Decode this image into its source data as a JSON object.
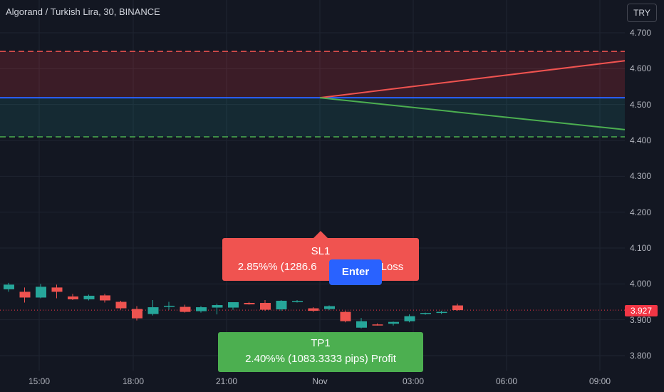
{
  "header": {
    "title": "Algorand / Turkish Lira, 30, BINANCE",
    "currency": "TRY"
  },
  "colors": {
    "background": "#131722",
    "up": "#26a69a",
    "down": "#ef5350",
    "sl": "#f05350",
    "tp": "#4caf50",
    "entry": "#2962ff"
  },
  "chart_data": {
    "type": "candlestick",
    "y_ticks": [
      "4.700",
      "4.600",
      "4.500",
      "4.400",
      "4.300",
      "4.200",
      "4.100",
      "4.000",
      "3.900",
      "3.800"
    ],
    "x_ticks": [
      "15:00",
      "18:00",
      "21:00",
      "Nov",
      "03:00",
      "06:00",
      "09:00"
    ],
    "last_price": "3.927",
    "ylim": [
      3.76,
      4.72
    ],
    "position": {
      "entry": 4.519,
      "stop": 4.648,
      "target": 4.41,
      "stop_projection": 4.622,
      "target_projection": 4.43
    },
    "candles": [
      {
        "t": 1,
        "o": 3.985,
        "h": 4.003,
        "l": 3.978,
        "c": 3.998
      },
      {
        "t": 2,
        "o": 3.978,
        "h": 3.99,
        "l": 3.948,
        "c": 3.962
      },
      {
        "t": 3,
        "o": 3.962,
        "h": 4.0,
        "l": 3.96,
        "c": 3.992
      },
      {
        "t": 4,
        "o": 3.99,
        "h": 3.998,
        "l": 3.96,
        "c": 3.978
      },
      {
        "t": 5,
        "o": 3.965,
        "h": 3.972,
        "l": 3.955,
        "c": 3.957
      },
      {
        "t": 6,
        "o": 3.957,
        "h": 3.97,
        "l": 3.954,
        "c": 3.967
      },
      {
        "t": 7,
        "o": 3.968,
        "h": 3.972,
        "l": 3.948,
        "c": 3.954
      },
      {
        "t": 8,
        "o": 3.95,
        "h": 3.953,
        "l": 3.928,
        "c": 3.932
      },
      {
        "t": 9,
        "o": 3.93,
        "h": 3.938,
        "l": 3.898,
        "c": 3.904
      },
      {
        "t": 10,
        "o": 3.916,
        "h": 3.955,
        "l": 3.912,
        "c": 3.935
      },
      {
        "t": 11,
        "o": 3.936,
        "h": 3.95,
        "l": 3.928,
        "c": 3.939
      },
      {
        "t": 12,
        "o": 3.936,
        "h": 3.942,
        "l": 3.92,
        "c": 3.922
      },
      {
        "t": 13,
        "o": 3.924,
        "h": 3.938,
        "l": 3.92,
        "c": 3.935
      },
      {
        "t": 14,
        "o": 3.934,
        "h": 3.945,
        "l": 3.915,
        "c": 3.941
      },
      {
        "t": 15,
        "o": 3.934,
        "h": 3.948,
        "l": 3.928,
        "c": 3.949
      },
      {
        "t": 16,
        "o": 3.947,
        "h": 3.95,
        "l": 3.942,
        "c": 3.943
      },
      {
        "t": 17,
        "o": 3.947,
        "h": 3.955,
        "l": 3.925,
        "c": 3.928
      },
      {
        "t": 18,
        "o": 3.929,
        "h": 3.955,
        "l": 3.925,
        "c": 3.953
      },
      {
        "t": 19,
        "o": 3.952,
        "h": 3.955,
        "l": 3.948,
        "c": 3.952
      },
      {
        "t": 20,
        "o": 3.932,
        "h": 3.935,
        "l": 3.922,
        "c": 3.925
      },
      {
        "t": 21,
        "o": 3.93,
        "h": 3.94,
        "l": 3.927,
        "c": 3.938
      },
      {
        "t": 22,
        "o": 3.922,
        "h": 3.925,
        "l": 3.893,
        "c": 3.896
      },
      {
        "t": 23,
        "o": 3.878,
        "h": 3.905,
        "l": 3.876,
        "c": 3.896
      },
      {
        "t": 24,
        "o": 3.887,
        "h": 3.89,
        "l": 3.884,
        "c": 3.886
      },
      {
        "t": 25,
        "o": 3.889,
        "h": 3.895,
        "l": 3.884,
        "c": 3.894
      },
      {
        "t": 26,
        "o": 3.896,
        "h": 3.915,
        "l": 3.893,
        "c": 3.91
      },
      {
        "t": 27,
        "o": 3.917,
        "h": 3.92,
        "l": 3.914,
        "c": 3.919
      },
      {
        "t": 28,
        "o": 3.919,
        "h": 3.925,
        "l": 3.916,
        "c": 3.922
      },
      {
        "t": 29,
        "o": 3.94,
        "h": 3.945,
        "l": 3.925,
        "c": 3.927
      }
    ]
  },
  "labels": {
    "sl_title": "SL1",
    "sl_text": "2.85%% (1286.6",
    "sl_suffix": "Loss",
    "tp_title": "TP1",
    "tp_text": "2.40%% (1083.3333 pips) Profit",
    "enter": "Enter"
  }
}
